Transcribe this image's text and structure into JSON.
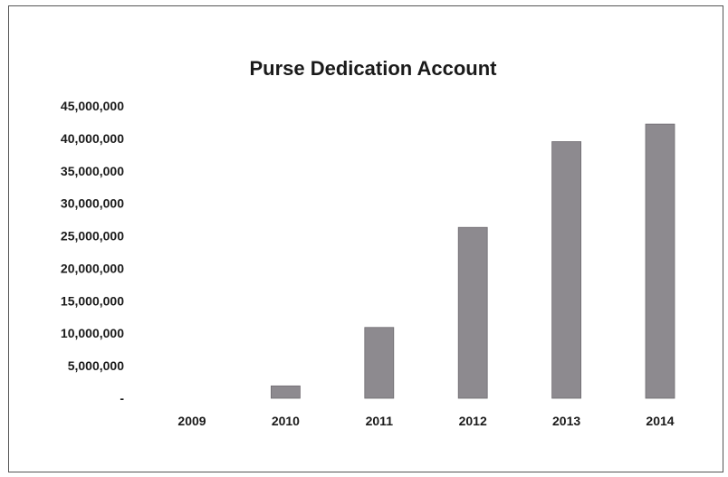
{
  "chart_data": {
    "type": "bar",
    "title": "Purse Dedication Account",
    "xlabel": "",
    "ylabel": "",
    "categories": [
      "2009",
      "2010",
      "2011",
      "2012",
      "2013",
      "2014"
    ],
    "values": [
      0,
      1900000,
      10900000,
      26300000,
      39500000,
      42200000
    ],
    "ylim": [
      0,
      45000000
    ],
    "y_ticks": [
      0,
      5000000,
      10000000,
      15000000,
      20000000,
      25000000,
      30000000,
      35000000,
      40000000,
      45000000
    ],
    "y_tick_labels": [
      "-",
      "5,000,000",
      "10,000,000",
      "15,000,000",
      "20,000,000",
      "25,000,000",
      "30,000,000",
      "35,000,000",
      "40,000,000",
      "45,000,000"
    ],
    "grid": false,
    "legend": "none",
    "bar_color": "#8d8a8f",
    "bar_edge_color": "#6f6b70"
  }
}
